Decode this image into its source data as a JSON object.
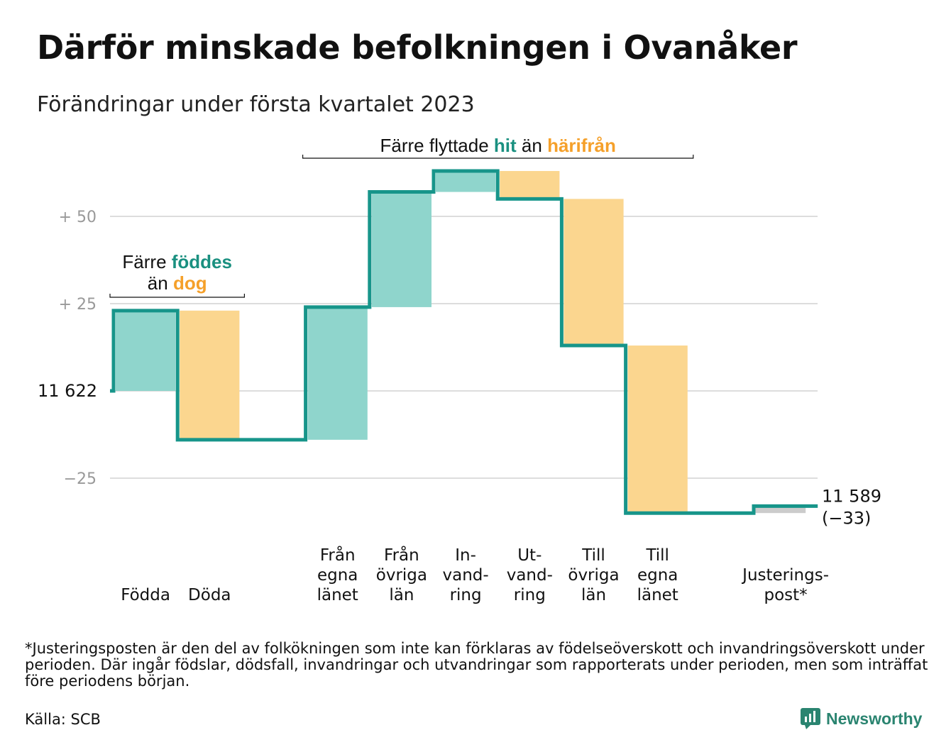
{
  "title": "Därför minskade befolkningen i Ovanåker",
  "subtitle": "Förändringar under första kvartalet 2023",
  "chart_data": {
    "type": "waterfall",
    "start_value": 11622,
    "start_label": "11 622",
    "end_value": 11589,
    "end_label": "11 589",
    "end_change_label": "(−33)",
    "yaxis": {
      "ticks": [
        {
          "value": 50,
          "label": "+ 50"
        },
        {
          "value": 25,
          "label": "+ 25"
        },
        {
          "value": 0,
          "label": ""
        },
        {
          "value": -25,
          "label": "−25"
        }
      ],
      "range": [
        -42,
        67
      ],
      "grid": true
    },
    "steps": [
      {
        "name": "fodda",
        "label": [
          "",
          "Födda"
        ],
        "change": 23,
        "kind": "inflow"
      },
      {
        "name": "doda",
        "label": [
          "",
          "Döda"
        ],
        "change": -37,
        "kind": "outflow"
      },
      {
        "name": "gap",
        "label": [
          ""
        ],
        "change": 0,
        "kind": "none"
      },
      {
        "name": "fran-egna-lanet",
        "label": [
          "Från",
          "egna",
          "länet"
        ],
        "change": 38,
        "kind": "inflow"
      },
      {
        "name": "fran-ovriga-lan",
        "label": [
          "Från",
          "övriga",
          "län"
        ],
        "change": 33,
        "kind": "inflow"
      },
      {
        "name": "invandring",
        "label": [
          "In-",
          "vand-",
          "ring"
        ],
        "change": 6,
        "kind": "inflow"
      },
      {
        "name": "utvandring",
        "label": [
          "Ut-",
          "vand-",
          "ring"
        ],
        "change": -8,
        "kind": "outflow"
      },
      {
        "name": "till-ovriga-lan",
        "label": [
          "Till",
          "övriga",
          "län"
        ],
        "change": -42,
        "kind": "outflow"
      },
      {
        "name": "till-egna-lanet",
        "label": [
          "Till",
          "egna",
          "länet"
        ],
        "change": -48,
        "kind": "outflow"
      },
      {
        "name": "gap2",
        "label": [
          ""
        ],
        "change": 0,
        "kind": "none"
      },
      {
        "name": "justeringspost",
        "label": [
          "Justerings-",
          "post*"
        ],
        "change": 2,
        "kind": "adjustment"
      }
    ],
    "annotations": [
      {
        "name": "births-annotation",
        "lines": [
          [
            "Färre ",
            "föddes"
          ],
          [
            "än ",
            "dog"
          ]
        ],
        "colors": [
          "#1a9080",
          "#f5a02a"
        ]
      },
      {
        "name": "migration-annotation",
        "lines": [
          [
            "Färre flyttade ",
            "hit",
            " än ",
            "härifrån"
          ]
        ],
        "colors": [
          "#1a9080",
          "#f5a02a"
        ]
      }
    ],
    "colors": {
      "line": "#17958a",
      "inflow": "#8fd5cc",
      "outflow": "#fbd68f",
      "adjustment": "#cccccc",
      "grid": "#dddddd",
      "tick_text": "#999999",
      "highlight_in": "#1a9080",
      "highlight_out": "#f5a02a"
    }
  },
  "footnote": "*Justeringsposten är den del av folkökningen som inte kan förklaras av födelseöverskott och invandringsöverskott under perioden. Där ingår födslar, dödsfall, invandringar och utvandringar som rapporterats under perioden, men som inträffat före periodens början.",
  "source": "Källa: SCB",
  "logo": {
    "text": "Newsworthy",
    "icon": "bar-chart-icon"
  }
}
